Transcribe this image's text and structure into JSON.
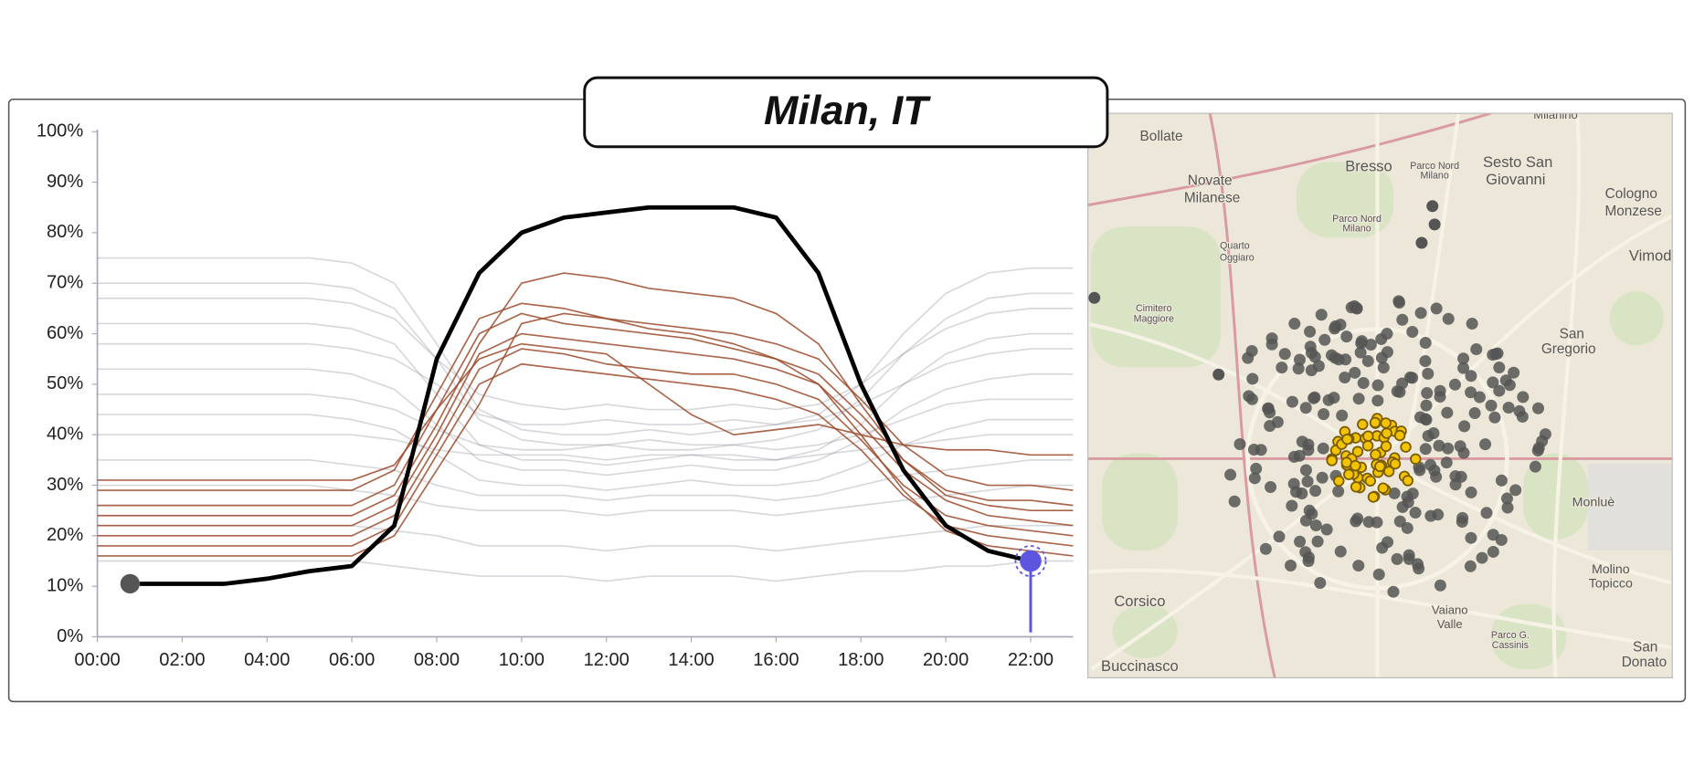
{
  "title": "Milan, IT",
  "chart_data": {
    "type": "line",
    "x": [
      0,
      1,
      2,
      3,
      4,
      5,
      6,
      7,
      8,
      9,
      10,
      11,
      12,
      13,
      14,
      15,
      16,
      17,
      18,
      19,
      20,
      21,
      22,
      23
    ],
    "xlim": [
      0,
      23
    ],
    "xticks": [
      {
        "value": 0,
        "label": "00:00"
      },
      {
        "value": 2,
        "label": "02:00"
      },
      {
        "value": 4,
        "label": "04:00"
      },
      {
        "value": 6,
        "label": "06:00"
      },
      {
        "value": 8,
        "label": "08:00"
      },
      {
        "value": 10,
        "label": "10:00"
      },
      {
        "value": 12,
        "label": "12:00"
      },
      {
        "value": 14,
        "label": "14:00"
      },
      {
        "value": 16,
        "label": "16:00"
      },
      {
        "value": 18,
        "label": "18:00"
      },
      {
        "value": 20,
        "label": "20:00"
      },
      {
        "value": 22,
        "label": "22:00"
      }
    ],
    "ylim": [
      0,
      100
    ],
    "yticks": [
      {
        "value": 0,
        "label": "0%"
      },
      {
        "value": 10,
        "label": "10%"
      },
      {
        "value": 20,
        "label": "20%"
      },
      {
        "value": 30,
        "label": "30%"
      },
      {
        "value": 40,
        "label": "40%"
      },
      {
        "value": 50,
        "label": "50%"
      },
      {
        "value": 60,
        "label": "60%"
      },
      {
        "value": 70,
        "label": "70%"
      },
      {
        "value": 80,
        "label": "80%"
      },
      {
        "value": 90,
        "label": "90%"
      },
      {
        "value": 100,
        "label": "100%"
      }
    ],
    "series": [
      {
        "color": "#8a8f9c",
        "values": [
          75,
          75,
          75,
          75,
          75,
          75,
          74,
          70,
          58,
          45,
          41,
          40,
          40,
          41,
          40,
          41,
          42,
          44,
          50,
          60,
          68,
          72,
          73,
          73
        ]
      },
      {
        "color": "#8a8f9c",
        "values": [
          70,
          70,
          70,
          70,
          70,
          70,
          69,
          65,
          55,
          43,
          39,
          38,
          38,
          39,
          38,
          38,
          39,
          41,
          47,
          56,
          63,
          67,
          68,
          68
        ]
      },
      {
        "color": "#8a8f9c",
        "values": [
          67,
          67,
          67,
          67,
          67,
          67,
          66,
          63,
          55,
          48,
          46,
          45,
          46,
          45,
          45,
          46,
          45,
          46,
          50,
          56,
          61,
          64,
          65,
          65
        ]
      },
      {
        "color": "#8a8f9c",
        "values": [
          62,
          62,
          62,
          62,
          62,
          62,
          61,
          58,
          48,
          38,
          35,
          35,
          34,
          35,
          36,
          35,
          35,
          37,
          42,
          50,
          56,
          59,
          60,
          60
        ]
      },
      {
        "color": "#8a8f9c",
        "values": [
          58,
          58,
          58,
          58,
          58,
          58,
          57,
          55,
          50,
          44,
          42,
          42,
          43,
          42,
          42,
          43,
          42,
          43,
          46,
          50,
          54,
          56,
          57,
          57
        ]
      },
      {
        "color": "#8a8f9c",
        "values": [
          53,
          53,
          53,
          53,
          53,
          53,
          52,
          49,
          42,
          35,
          33,
          33,
          32,
          33,
          34,
          33,
          33,
          35,
          39,
          45,
          49,
          51,
          52,
          52
        ]
      },
      {
        "color": "#8a8f9c",
        "values": [
          48,
          48,
          48,
          48,
          48,
          48,
          47,
          45,
          41,
          38,
          37,
          37,
          38,
          37,
          37,
          38,
          37,
          38,
          40,
          43,
          46,
          47,
          47,
          47
        ]
      },
      {
        "color": "#8a8f9c",
        "values": [
          44,
          44,
          44,
          44,
          44,
          44,
          43,
          41,
          36,
          31,
          30,
          30,
          29,
          30,
          31,
          30,
          30,
          31,
          34,
          38,
          41,
          43,
          43,
          43
        ]
      },
      {
        "color": "#8a8f9c",
        "values": [
          40,
          40,
          40,
          40,
          40,
          40,
          40,
          39,
          37,
          36,
          36,
          36,
          35,
          36,
          36,
          36,
          35,
          36,
          37,
          38,
          39,
          40,
          40,
          40
        ]
      },
      {
        "color": "#8a8f9c",
        "values": [
          35,
          35,
          35,
          35,
          35,
          35,
          34,
          33,
          30,
          28,
          28,
          28,
          27,
          28,
          28,
          28,
          27,
          28,
          30,
          32,
          33,
          34,
          35,
          35
        ]
      },
      {
        "color": "#8a8f9c",
        "values": [
          30,
          30,
          30,
          30,
          30,
          30,
          29,
          28,
          26,
          25,
          25,
          25,
          24,
          25,
          25,
          25,
          24,
          25,
          26,
          27,
          28,
          29,
          30,
          30
        ]
      },
      {
        "color": "#8a8f9c",
        "values": [
          22,
          22,
          22,
          22,
          22,
          22,
          22,
          21,
          20,
          18,
          18,
          18,
          17,
          18,
          18,
          18,
          17,
          18,
          19,
          20,
          21,
          22,
          22,
          22
        ]
      },
      {
        "color": "#8a8f9c",
        "values": [
          15,
          15,
          15,
          15,
          15,
          15,
          15,
          14,
          13,
          12,
          12,
          12,
          11,
          12,
          12,
          12,
          11,
          12,
          13,
          13,
          14,
          14,
          15,
          15
        ]
      },
      {
        "color": "#9b4a2a",
        "values": [
          29,
          29,
          29,
          29,
          29,
          29,
          29,
          33,
          48,
          63,
          66,
          65,
          63,
          62,
          61,
          60,
          58,
          55,
          47,
          38,
          32,
          30,
          30,
          29
        ]
      },
      {
        "color": "#9b4a2a",
        "values": [
          26,
          26,
          26,
          26,
          26,
          26,
          26,
          30,
          45,
          60,
          64,
          62,
          61,
          60,
          59,
          57,
          55,
          52,
          44,
          35,
          29,
          27,
          27,
          26
        ]
      },
      {
        "color": "#9b4a2a",
        "values": [
          24,
          24,
          24,
          24,
          24,
          24,
          24,
          28,
          42,
          58,
          70,
          72,
          71,
          69,
          68,
          67,
          64,
          58,
          46,
          35,
          28,
          26,
          25,
          25
        ]
      },
      {
        "color": "#9b4a2a",
        "values": [
          22,
          22,
          22,
          22,
          22,
          22,
          22,
          26,
          40,
          56,
          60,
          59,
          58,
          57,
          56,
          55,
          53,
          50,
          42,
          33,
          27,
          24,
          23,
          22
        ]
      },
      {
        "color": "#9b4a2a",
        "values": [
          20,
          20,
          20,
          20,
          20,
          20,
          20,
          24,
          38,
          53,
          57,
          56,
          54,
          53,
          52,
          52,
          50,
          47,
          39,
          30,
          24,
          22,
          21,
          20
        ]
      },
      {
        "color": "#9b4a2a",
        "values": [
          18,
          18,
          18,
          18,
          18,
          18,
          18,
          22,
          36,
          50,
          54,
          53,
          52,
          51,
          50,
          49,
          47,
          44,
          37,
          28,
          22,
          20,
          19,
          18
        ]
      },
      {
        "color": "#9b4a2a",
        "values": [
          31,
          31,
          31,
          31,
          31,
          31,
          31,
          34,
          45,
          55,
          58,
          57,
          56,
          50,
          44,
          40,
          41,
          42,
          40,
          38,
          37,
          37,
          36,
          36
        ]
      },
      {
        "color": "#9b4a2a",
        "values": [
          16,
          16,
          16,
          16,
          16,
          16,
          16,
          20,
          33,
          46,
          62,
          64,
          63,
          61,
          60,
          58,
          55,
          50,
          40,
          29,
          21,
          18,
          17,
          16
        ]
      },
      {
        "color": "#000000",
        "highlight": true,
        "values": [
          null,
          10.5,
          10.5,
          10.5,
          11.5,
          13,
          14,
          22,
          55,
          72,
          80,
          83,
          84,
          85,
          85,
          85,
          83,
          72,
          50,
          33,
          22,
          17,
          15,
          null
        ]
      }
    ]
  },
  "map": {
    "labels": [
      "Milanino",
      "Bollate",
      "Novate",
      "Milanese",
      "Bresso",
      "Parco Nord",
      "Milano",
      "Sesto San",
      "Giovanni",
      "Cologno",
      "Monzese",
      "Vimodr",
      "Parco Nord",
      "Milano",
      "Quarto",
      "Oggiaro",
      "Cimitero",
      "Maggiore",
      "San",
      "Gregorio",
      "Monluè",
      "Molino",
      "Topicco",
      "Corsico",
      "Vaiano",
      "Valle",
      "Parco G.",
      "Cassinis",
      "San",
      "Donato",
      "Buccinasco"
    ]
  }
}
